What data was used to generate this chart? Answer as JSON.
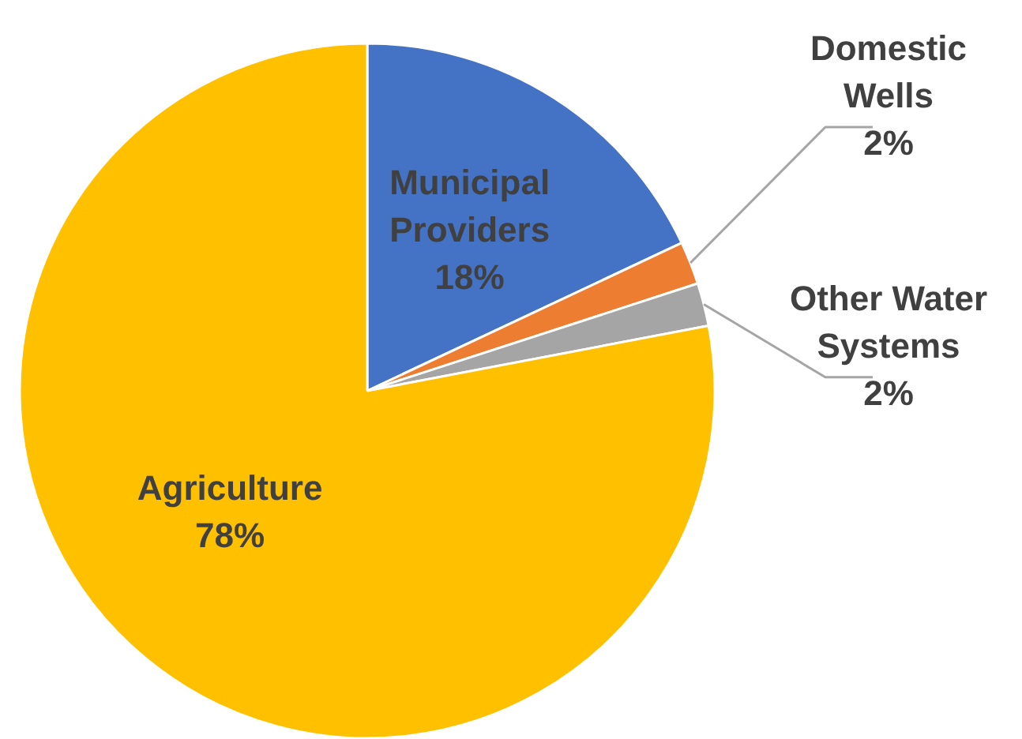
{
  "chart_data": {
    "type": "pie",
    "categories": [
      "Municipal Providers",
      "Domestic Wells",
      "Other Water Systems",
      "Agriculture"
    ],
    "values": [
      18,
      2,
      2,
      78
    ],
    "colors": [
      "#4472c4",
      "#ed7d31",
      "#a5a5a5",
      "#ffc000"
    ],
    "value_labels": [
      "18%",
      "2%",
      "2%",
      "78%"
    ]
  }
}
